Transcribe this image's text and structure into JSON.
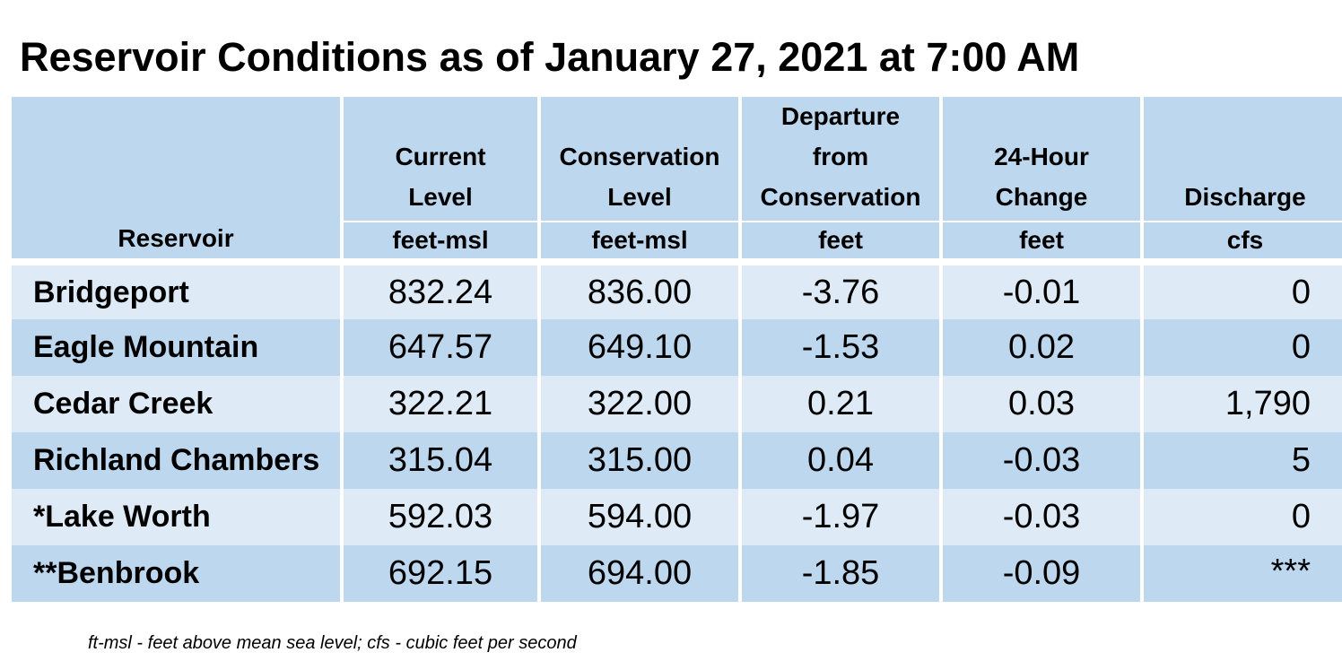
{
  "title": "Reservoir Conditions as of January 27, 2021 at 7:00 AM",
  "header": {
    "reservoir": "Reservoir",
    "columns": [
      {
        "lines": [
          "Current",
          "Level"
        ],
        "unit": "feet-msl"
      },
      {
        "lines": [
          "Conservation",
          "Level"
        ],
        "unit": "feet-msl"
      },
      {
        "lines": [
          "Departure",
          "from",
          "Conservation"
        ],
        "unit": "feet"
      },
      {
        "lines": [
          "24-Hour",
          "Change"
        ],
        "unit": "feet"
      },
      {
        "lines": [
          "Discharge"
        ],
        "unit": "cfs"
      }
    ]
  },
  "rows": [
    {
      "name": "Bridgeport",
      "current": "832.24",
      "conservation": "836.00",
      "departure": "-3.76",
      "change": "-0.01",
      "discharge": "0"
    },
    {
      "name": "Eagle Mountain",
      "current": "647.57",
      "conservation": "649.10",
      "departure": "-1.53",
      "change": "0.02",
      "discharge": "0"
    },
    {
      "name": "Cedar Creek",
      "current": "322.21",
      "conservation": "322.00",
      "departure": "0.21",
      "change": "0.03",
      "discharge": "1,790"
    },
    {
      "name": "Richland Chambers",
      "current": "315.04",
      "conservation": "315.00",
      "departure": "0.04",
      "change": "-0.03",
      "discharge": "5"
    },
    {
      "name": "*Lake Worth",
      "current": "592.03",
      "conservation": "594.00",
      "departure": "-1.97",
      "change": "-0.03",
      "discharge": "0"
    },
    {
      "name": "**Benbrook",
      "current": "692.15",
      "conservation": "694.00",
      "departure": "-1.85",
      "change": "-0.09",
      "discharge": "***"
    }
  ],
  "footnote": "ft-msl - feet above mean sea level; cfs - cubic feet per second",
  "colors": {
    "header_bg": "#bdd7ee",
    "row_light": "#deebf7",
    "row_dark": "#bdd7ee"
  }
}
